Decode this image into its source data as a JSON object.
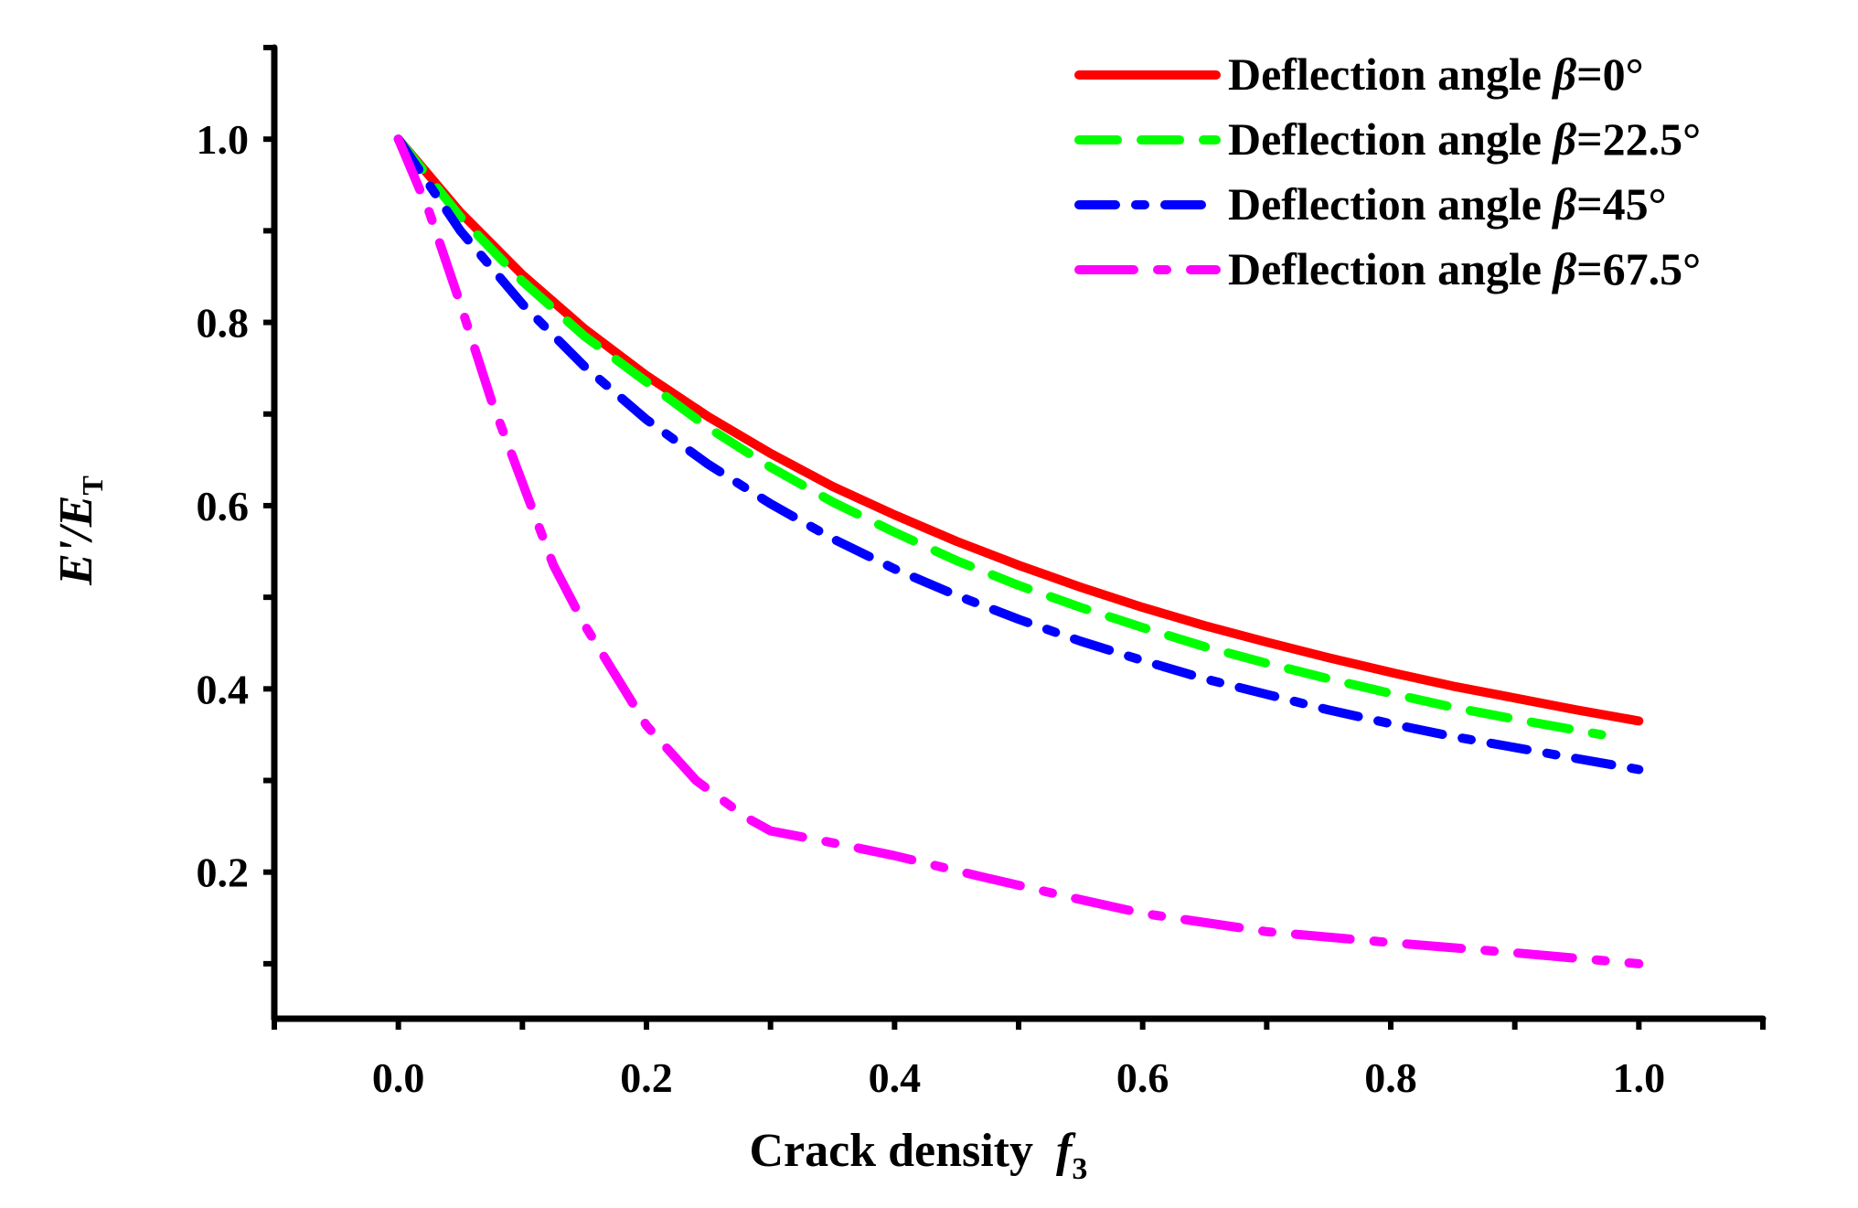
{
  "chart_data": {
    "type": "line",
    "xlabel": "Crack density",
    "xlabel_var": "f",
    "xlabel_sub": "3",
    "ylabel_num": "E'",
    "ylabel_den": "E",
    "ylabel_sub": "T",
    "xlim": [
      -0.1,
      1.1
    ],
    "ylim": [
      0.04,
      1.1
    ],
    "xticks": [
      "0.0",
      "0.2",
      "0.4",
      "0.6",
      "0.8",
      "1.0"
    ],
    "yticks": [
      "0.2",
      "0.4",
      "0.6",
      "0.8",
      "1.0"
    ],
    "grid": false,
    "legend_position": "top-right",
    "series": [
      {
        "name": "Deflection angle ",
        "beta": "β",
        "value": "=0°",
        "color": "#ff0000",
        "dash": "solid",
        "x": [
          0,
          0.05,
          0.1,
          0.15,
          0.2,
          0.25,
          0.3,
          0.35,
          0.4,
          0.45,
          0.5,
          0.55,
          0.6,
          0.65,
          0.7,
          0.75,
          0.8,
          0.85,
          0.9,
          0.95,
          1.0
        ],
        "y": [
          1,
          0.92,
          0.852,
          0.793,
          0.742,
          0.697,
          0.657,
          0.621,
          0.59,
          0.561,
          0.535,
          0.511,
          0.489,
          0.469,
          0.451,
          0.434,
          0.418,
          0.403,
          0.39,
          0.377,
          0.365
        ]
      },
      {
        "name": "Deflection angle ",
        "beta": "β",
        "value": "=22.5°",
        "color": "#00ff00",
        "dash": "dash",
        "x": [
          0,
          0.05,
          0.1,
          0.15,
          0.2,
          0.25,
          0.3,
          0.35,
          0.4,
          0.45,
          0.5,
          0.55,
          0.6,
          0.65,
          0.7,
          0.75,
          0.8,
          0.85,
          0.9,
          0.97
        ],
        "y": [
          1,
          0.915,
          0.845,
          0.785,
          0.735,
          0.685,
          0.642,
          0.604,
          0.571,
          0.54,
          0.513,
          0.489,
          0.467,
          0.446,
          0.428,
          0.411,
          0.395,
          0.38,
          0.367,
          0.35
        ]
      },
      {
        "name": "Deflection angle ",
        "beta": "β",
        "value": "=45°",
        "color": "#0000ff",
        "dash": "dash-dot",
        "x": [
          0,
          0.05,
          0.1,
          0.15,
          0.2,
          0.25,
          0.3,
          0.35,
          0.4,
          0.45,
          0.5,
          0.55,
          0.6,
          0.65,
          0.7,
          0.75,
          0.8,
          0.85,
          0.9,
          0.95,
          1.0
        ],
        "y": [
          1,
          0.9,
          0.82,
          0.752,
          0.694,
          0.645,
          0.602,
          0.564,
          0.531,
          0.502,
          0.476,
          0.452,
          0.431,
          0.411,
          0.394,
          0.377,
          0.362,
          0.348,
          0.336,
          0.324,
          0.312
        ]
      },
      {
        "name": "Deflection angle ",
        "beta": "β",
        "value": "=67.5°",
        "color": "#ff00ff",
        "dash": "long-dash-dot",
        "x": [
          0,
          0.025,
          0.05,
          0.075,
          0.1,
          0.125,
          0.15,
          0.2,
          0.24,
          0.28,
          0.3,
          0.35,
          0.4,
          0.47,
          0.55,
          0.6,
          0.7,
          0.8,
          0.9,
          1.0
        ],
        "y": [
          1,
          0.92,
          0.82,
          0.715,
          0.625,
          0.535,
          0.47,
          0.36,
          0.3,
          0.26,
          0.245,
          0.232,
          0.218,
          0.195,
          0.17,
          0.155,
          0.135,
          0.123,
          0.112,
          0.1
        ]
      }
    ]
  }
}
